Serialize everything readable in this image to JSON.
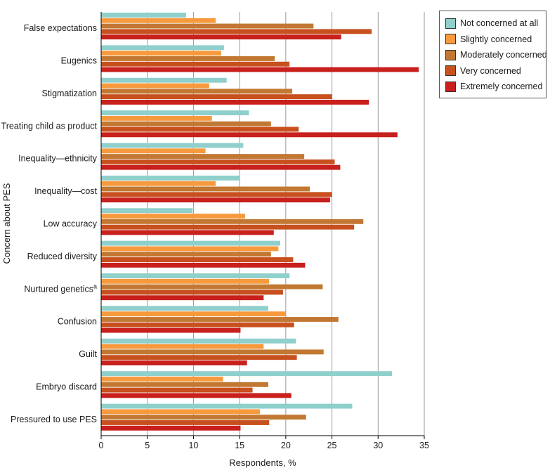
{
  "chart_data": {
    "type": "bar",
    "orientation": "horizontal",
    "xlabel": "Respondents, %",
    "ylabel": "Concern about PES",
    "xlim": [
      0,
      35
    ],
    "xticks": [
      "0",
      "5",
      "10",
      "15",
      "20",
      "25",
      "30",
      "35"
    ],
    "grid": true,
    "legend_position": "top-right",
    "categories": [
      {
        "label": "False expectations",
        "superscript": ""
      },
      {
        "label": "Eugenics",
        "superscript": ""
      },
      {
        "label": "Stigmatization",
        "superscript": ""
      },
      {
        "label": "Treating child as product",
        "superscript": ""
      },
      {
        "label": "Inequality—ethnicity",
        "superscript": ""
      },
      {
        "label": "Inequality—cost",
        "superscript": ""
      },
      {
        "label": "Low accuracy",
        "superscript": ""
      },
      {
        "label": "Reduced diversity",
        "superscript": ""
      },
      {
        "label": "Nurtured genetics",
        "superscript": "a"
      },
      {
        "label": "Confusion",
        "superscript": ""
      },
      {
        "label": "Guilt",
        "superscript": ""
      },
      {
        "label": "Embryo discard",
        "superscript": ""
      },
      {
        "label": "Pressured to use PES",
        "superscript": ""
      }
    ],
    "series": [
      {
        "name": "Not concerned at all",
        "color": "#8fcfcc",
        "values": [
          9.2,
          13.3,
          13.6,
          16.0,
          15.4,
          15.0,
          9.9,
          19.4,
          20.4,
          18.1,
          21.1,
          31.5,
          27.2
        ]
      },
      {
        "name": "Slightly concerned",
        "color": "#f79a3e",
        "values": [
          12.4,
          13.0,
          11.7,
          12.0,
          11.3,
          12.4,
          15.6,
          19.2,
          18.2,
          20.0,
          17.6,
          13.2,
          17.2
        ]
      },
      {
        "name": "Moderately concerned",
        "color": "#c27832",
        "values": [
          23.0,
          18.8,
          20.7,
          18.4,
          22.0,
          22.6,
          28.4,
          18.4,
          24.0,
          25.7,
          24.1,
          18.1,
          22.2
        ]
      },
      {
        "name": "Very concerned",
        "color": "#c8501e",
        "values": [
          29.3,
          20.4,
          25.0,
          21.4,
          25.3,
          25.0,
          27.4,
          20.8,
          19.7,
          20.9,
          21.2,
          16.4,
          18.2
        ]
      },
      {
        "name": "Extremely concerned",
        "color": "#c8201c",
        "values": [
          26.0,
          34.4,
          29.0,
          32.1,
          25.9,
          24.8,
          18.7,
          22.1,
          17.6,
          15.1,
          15.8,
          20.6,
          15.1
        ]
      }
    ]
  }
}
